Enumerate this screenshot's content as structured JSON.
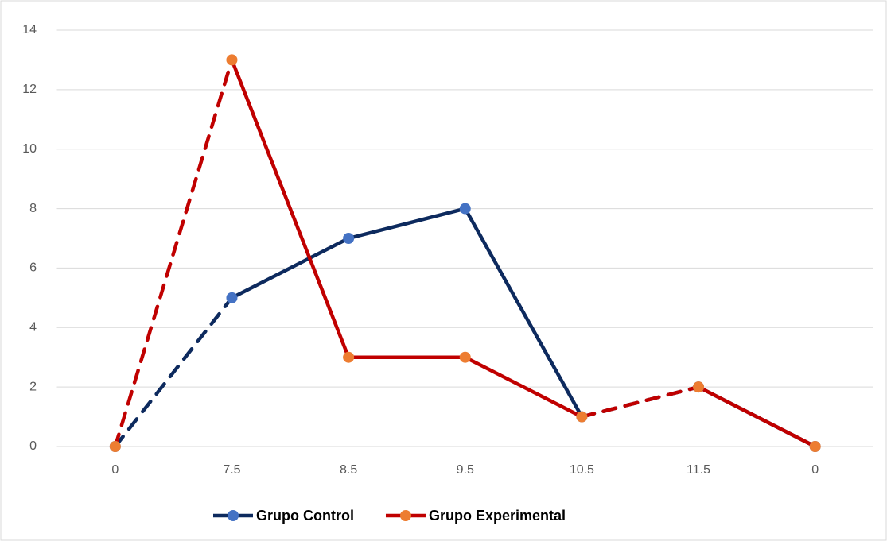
{
  "chart_data": {
    "type": "line",
    "categories": [
      "0",
      "7.5",
      "8.5",
      "9.5",
      "10.5",
      "11.5",
      "0"
    ],
    "series": [
      {
        "name": "Grupo Control",
        "color": "#0d2a5e",
        "marker_color": "#4472c4",
        "values": [
          0,
          5,
          7,
          8,
          1,
          2,
          0
        ],
        "dashed_segments": [
          0,
          4
        ]
      },
      {
        "name": "Grupo Experimental",
        "color": "#c00000",
        "marker_color": "#ed7d31",
        "values": [
          0,
          13,
          3,
          3,
          1,
          2,
          0
        ],
        "dashed_segments": [
          0,
          4
        ]
      }
    ],
    "ylim": [
      0,
      14
    ],
    "yticks": [
      0,
      2,
      4,
      6,
      8,
      10,
      12,
      14
    ],
    "grid": true,
    "legend": "bottom"
  }
}
